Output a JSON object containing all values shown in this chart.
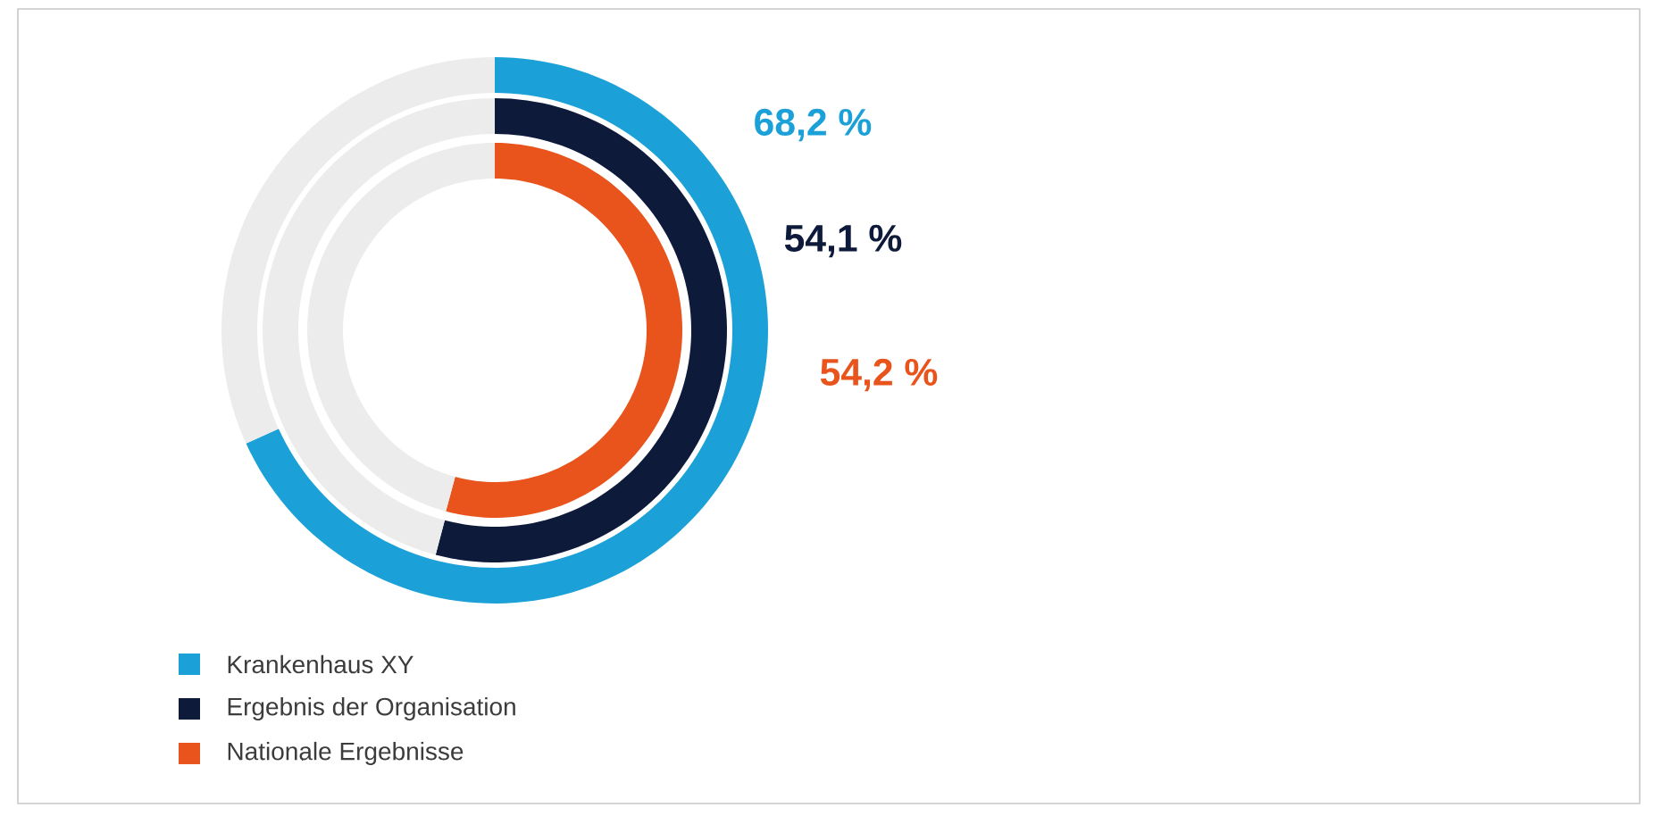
{
  "chart_data": {
    "type": "donut",
    "categories": [
      null,
      null
    ],
    "series": [
      {
        "name": "Krankenhaus XY",
        "colors": [
          "#1ba1d8",
          "#ececec"
        ],
        "values": [
          68.2,
          31.8
        ],
        "value_labels": [
          "68,2 %",
          null
        ]
      },
      {
        "name": "Ergebnis der Organisation",
        "colors": [
          "#0d1a3a",
          "#ececec"
        ],
        "values": [
          54.1,
          45.9
        ],
        "value_labels": [
          "54,1 %",
          null
        ]
      },
      {
        "name": "Nationale Ergebnisse",
        "colors": [
          "#e8541c",
          "#ececec"
        ],
        "values": [
          54.2,
          45.8
        ],
        "value_labels": [
          "54,2 %",
          null
        ]
      }
    ],
    "legend": "bottom left"
  }
}
